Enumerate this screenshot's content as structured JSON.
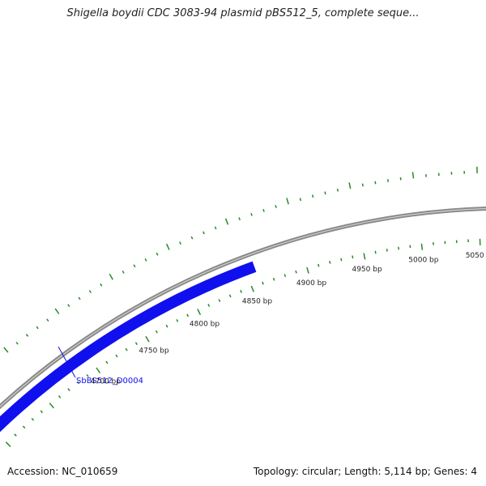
{
  "title": "Shigella boydii CDC 3083-94 plasmid pBS512_5, complete seque...",
  "footer": {
    "accession": "Accession: NC_010659",
    "summary": "Topology: circular; Length: 5,114 bp; Genes: 4"
  },
  "plasmid": {
    "length_bp": 5114,
    "topology": "circular",
    "backbone_color": "#888888",
    "tick_color": "#2a8a2a",
    "gene_color": "#1010ee"
  },
  "ruler": {
    "labels": [
      "4700 bp",
      "4750 bp",
      "4800 bp",
      "4850 bp",
      "4900 bp",
      "4950 bp",
      "5000 bp",
      "5050 bp"
    ]
  },
  "genes": [
    {
      "name": "SbBS512_D0004",
      "color": "#1010ee"
    }
  ]
}
